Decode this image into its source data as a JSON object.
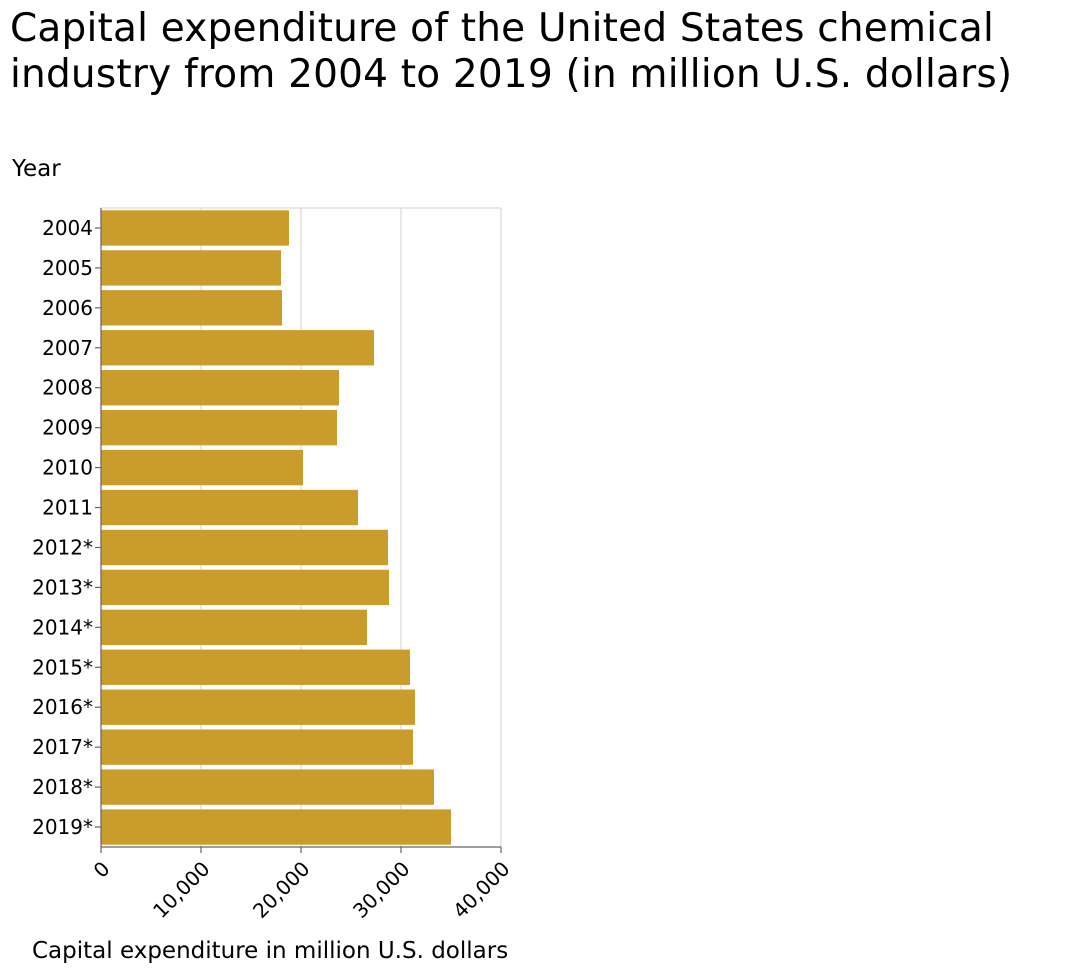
{
  "chart_data": {
    "type": "bar",
    "orientation": "horizontal",
    "title": "Capital expenditure of the United States chemical industry from 2004 to 2019 (in million U.S. dollars)",
    "ylabel": "Year",
    "xlabel": "Capital expenditure in million U.S. dollars",
    "categories": [
      "2004",
      "2005",
      "2006",
      "2007",
      "2008",
      "2009",
      "2010",
      "2011",
      "2012*",
      "2013*",
      "2014*",
      "2015*",
      "2016*",
      "2017*",
      "2018*",
      "2019*"
    ],
    "values": [
      18800,
      18000,
      18100,
      27300,
      23800,
      23600,
      20200,
      25700,
      28700,
      28800,
      26600,
      30900,
      31400,
      31200,
      33300,
      35000
    ],
    "xlim": [
      0,
      40000
    ],
    "xticks": [
      0,
      10000,
      20000,
      30000,
      40000
    ],
    "xtick_labels": [
      "0",
      "10,000",
      "20,000",
      "30,000",
      "40,000"
    ],
    "grid": true,
    "legend": "none",
    "bar_color": "#c99c2b",
    "grid_color": "#d9d9d9",
    "axis_color": "#666666"
  }
}
